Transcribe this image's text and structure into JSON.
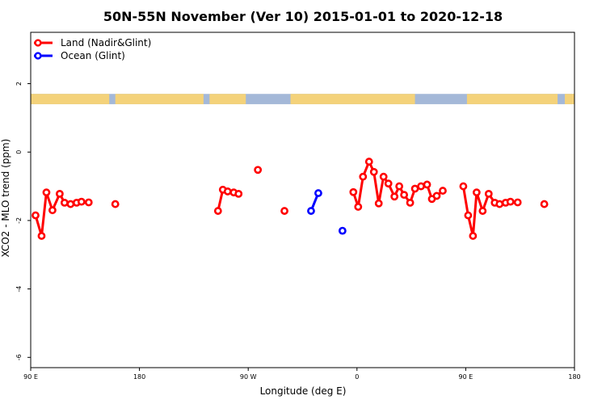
{
  "chart_data": {
    "type": "line",
    "title": "50N-55N November (Ver 10)   2015-01-01 to 2020-12-18",
    "xlabel": "Longitude (deg E)",
    "ylabel": "XCO2 - MLO trend (ppm)",
    "xlim": [
      90,
      540
    ],
    "ylim": [
      -6.3,
      3.5
    ],
    "x_ticks": [
      {
        "value": 90,
        "label": "90 E"
      },
      {
        "value": 180,
        "label": "180"
      },
      {
        "value": 270,
        "label": "90 W"
      },
      {
        "value": 360,
        "label": "0"
      },
      {
        "value": 450,
        "label": "90 E"
      },
      {
        "value": 540,
        "label": "180"
      }
    ],
    "y_ticks": [
      {
        "value": 2,
        "label": "2"
      },
      {
        "value": 0,
        "label": "0"
      },
      {
        "value": -2,
        "label": "-2"
      },
      {
        "value": -4,
        "label": "-4"
      },
      {
        "value": -6,
        "label": "-6"
      }
    ],
    "land_ocean_strip": {
      "y_range": [
        1.4,
        1.7
      ],
      "ocean_color": "#a4b8d8",
      "land_color": "#f4d27a",
      "land_segments": [
        [
          90,
          155
        ],
        [
          160,
          233
        ],
        [
          238,
          268
        ],
        [
          305,
          408
        ],
        [
          451,
          526
        ],
        [
          532,
          540
        ]
      ]
    },
    "legend": {
      "position": "top-left",
      "entries": [
        {
          "label": "Land (Nadir&Glint)",
          "color": "#ff0000"
        },
        {
          "label": "Ocean (Glint)",
          "color": "#0000ff"
        }
      ]
    },
    "series": [
      {
        "name": "Land (Nadir&Glint)",
        "color": "#ff0000",
        "segments": [
          [
            [
              94,
              -1.85
            ],
            [
              99,
              -2.45
            ],
            [
              103,
              -1.18
            ],
            [
              108,
              -1.7
            ],
            [
              114,
              -1.22
            ],
            [
              118,
              -1.48
            ],
            [
              123,
              -1.52
            ],
            [
              128,
              -1.48
            ],
            [
              132,
              -1.45
            ],
            [
              138,
              -1.47
            ]
          ],
          [
            [
              160,
              -1.52
            ]
          ],
          [
            [
              245,
              -1.72
            ],
            [
              249,
              -1.1
            ],
            [
              253,
              -1.15
            ],
            [
              258,
              -1.18
            ],
            [
              262,
              -1.22
            ]
          ],
          [
            [
              278,
              -0.52
            ]
          ],
          [
            [
              300,
              -1.72
            ]
          ],
          [
            [
              357,
              -1.17
            ],
            [
              361,
              -1.6
            ],
            [
              365,
              -0.72
            ],
            [
              370,
              -0.28
            ],
            [
              374,
              -0.58
            ],
            [
              378,
              -1.5
            ],
            [
              382,
              -0.72
            ],
            [
              386,
              -0.92
            ],
            [
              391,
              -1.3
            ],
            [
              395,
              -1.0
            ],
            [
              399,
              -1.25
            ],
            [
              404,
              -1.48
            ],
            [
              408,
              -1.07
            ],
            [
              413,
              -1.0
            ],
            [
              418,
              -0.95
            ],
            [
              422,
              -1.37
            ],
            [
              426,
              -1.28
            ],
            [
              431,
              -1.13
            ]
          ],
          [
            [
              448,
              -1.0
            ],
            [
              452,
              -1.85
            ],
            [
              456,
              -2.45
            ],
            [
              459,
              -1.18
            ],
            [
              464,
              -1.72
            ],
            [
              469,
              -1.22
            ],
            [
              474,
              -1.48
            ],
            [
              478,
              -1.52
            ],
            [
              483,
              -1.48
            ],
            [
              487,
              -1.45
            ],
            [
              493,
              -1.47
            ]
          ],
          [
            [
              515,
              -1.52
            ]
          ]
        ]
      },
      {
        "name": "Ocean (Glint)",
        "color": "#0000ff",
        "segments": [
          [
            [
              322,
              -1.72
            ],
            [
              328,
              -1.2
            ]
          ],
          [
            [
              348,
              -2.3
            ]
          ]
        ]
      }
    ]
  }
}
